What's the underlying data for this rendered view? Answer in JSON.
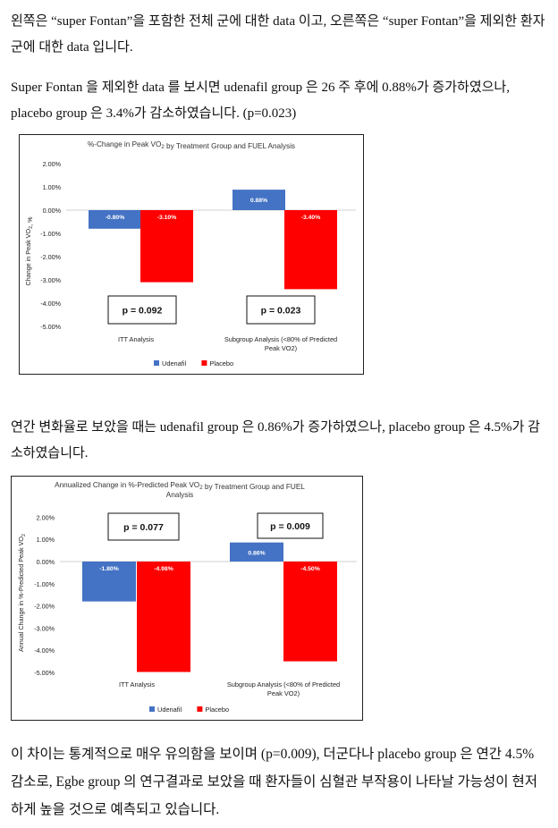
{
  "paragraphs": {
    "p1": "왼쪽은 “super Fontan”을 포함한 전체 군에 대한 data 이고, 오른쪽은 “super Fontan”을 제외한 환자군에 대한 data 입니다.",
    "p2": "Super Fontan 을 제외한 data 를 보시면 udenafil group 은 26 주 후에 0.88%가 증가하였으나, placebo group 은 3.4%가 감소하였습니다. (p=0.023)",
    "p3": "연간 변화율로 보았을 때는 udenafil group 은 0.86%가 증가하였으나, placebo group 은 4.5%가 감소하였습니다.",
    "p4": "이 차이는 통계적으로 매우 유의함을 보이며 (p=0.009), 더군다나 placebo group 은 연간 4.5% 감소로, Egbe group 의 연구결과로 보았을 때 환자들이 심혈관 부작용이 나타날 가능성이 현저하게 높을 것으로 예측되고 있습니다."
  },
  "chart_data": [
    {
      "type": "bar",
      "title": "%-Change in Peak VO2 by Treatment Group and FUEL Analysis",
      "ylabel": "Change in Peak VO2, %",
      "ylim": [
        -5,
        2
      ],
      "yticks": [
        "2.00%",
        "1.00%",
        "0.00%",
        "-1.00%",
        "-2.00%",
        "-3.00%",
        "-4.00%",
        "-5.00%"
      ],
      "categories": [
        "ITT Analysis",
        "Subgroup Analysis (<80% of Predicted Peak VO2)"
      ],
      "series": [
        {
          "name": "Udenafil",
          "color": "#4472C4",
          "values": [
            -0.8,
            0.88
          ],
          "labels": [
            "-0.80%",
            "0.88%"
          ]
        },
        {
          "name": "Placebo",
          "color": "#FF0000",
          "values": [
            -3.1,
            -3.4
          ],
          "labels": [
            "-3.10%",
            "-3.40%"
          ]
        }
      ],
      "pvalues": [
        "p  =  0.092",
        "p  =  0.023"
      ],
      "legend": "bottom",
      "grid": false
    },
    {
      "type": "bar",
      "title": "Annualized Change in %-Predicted Peak VO2 by Treatment Group and FUEL Analysis",
      "ylabel": "Annual Change in %-Predicted Peak VO2",
      "ylim": [
        -5,
        2
      ],
      "yticks": [
        "2.00%",
        "1.00%",
        "0.00%",
        "-1.00%",
        "-2.00%",
        "-3.00%",
        "-4.00%",
        "-5.00%"
      ],
      "categories": [
        "ITT Analysis",
        "Subgroup Analysis (<80% of Predicted Peak VO2)"
      ],
      "series": [
        {
          "name": "Udenafil",
          "color": "#4472C4",
          "values": [
            -1.8,
            0.86
          ],
          "labels": [
            "-1.80%",
            "0.86%"
          ]
        },
        {
          "name": "Placebo",
          "color": "#FF0000",
          "values": [
            -4.98,
            -4.5
          ],
          "labels": [
            "-4.98%",
            "-4.50%"
          ]
        }
      ],
      "pvalues": [
        "p  =  0.077",
        "p  =  0.009"
      ],
      "legend": "bottom",
      "grid": false
    }
  ]
}
